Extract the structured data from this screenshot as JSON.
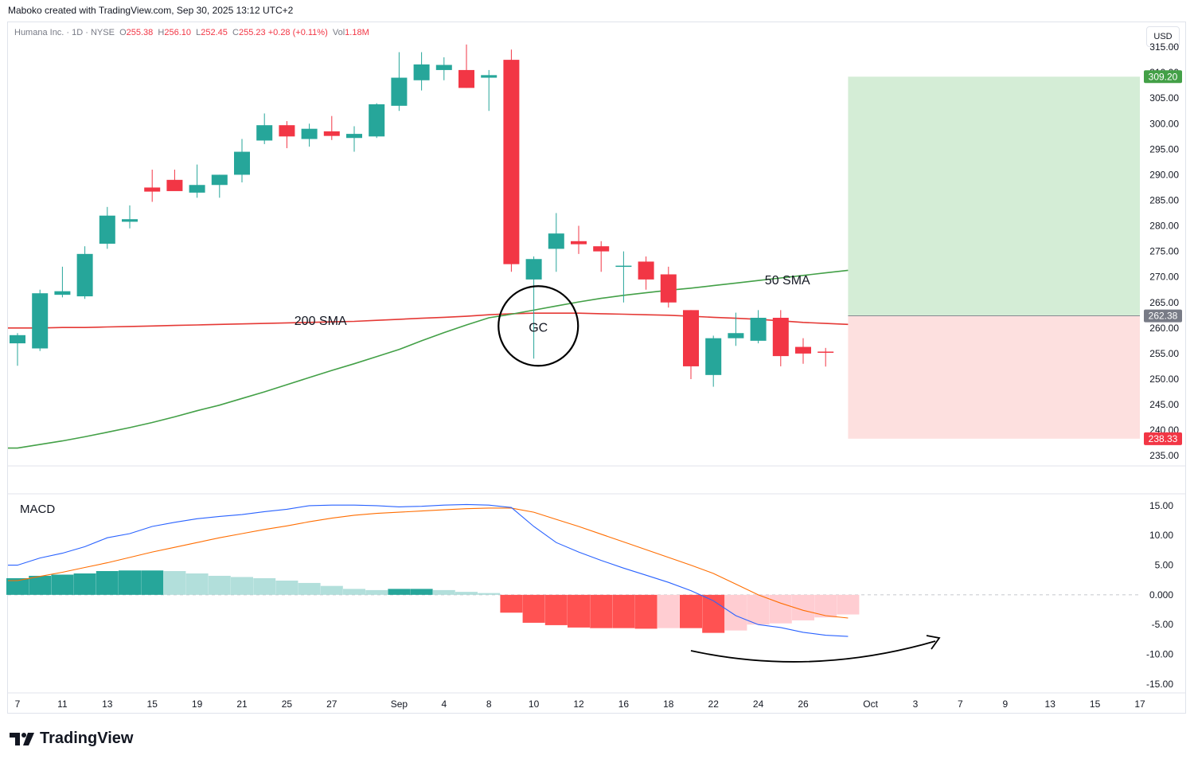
{
  "header": {
    "created_by": "Maboko created with TradingView.com, Sep 30, 2025 13:12 UTC+2",
    "symbol": "Humana Inc. · 1D · NYSE",
    "o_key": "O",
    "o_val": "255.38",
    "h_key": "H",
    "h_val": "256.10",
    "l_key": "L",
    "l_val": "252.45",
    "c_key": "C",
    "c_val": "255.23",
    "change": "+0.28 (+0.11%)",
    "vol_key": "Vol",
    "vol_val": "1.18M"
  },
  "currency_button": "USD",
  "brand": "TradingView",
  "colors": {
    "up": "#26a69a",
    "down": "#f23645",
    "sma50": "#43a047",
    "sma200": "#e53935",
    "macd": "#2962ff",
    "signal": "#ff6d00",
    "target_zone": "#d4edd6",
    "stop_zone": "#fde0df"
  },
  "chart_data": [
    {
      "type": "candlestick",
      "y_ticks": [
        "315.00",
        "310.00",
        "305.00",
        "300.00",
        "295.00",
        "290.00",
        "285.00",
        "280.00",
        "275.00",
        "270.00",
        "265.00",
        "260.00",
        "255.00",
        "250.00",
        "245.00",
        "240.00",
        "235.00"
      ],
      "ylim": [
        233,
        320
      ],
      "x_ticks": [
        {
          "i": 0,
          "label": "7"
        },
        {
          "i": 2,
          "label": "11"
        },
        {
          "i": 4,
          "label": "13"
        },
        {
          "i": 6,
          "label": "15"
        },
        {
          "i": 8,
          "label": "19"
        },
        {
          "i": 10,
          "label": "21"
        },
        {
          "i": 12,
          "label": "25"
        },
        {
          "i": 14,
          "label": "27"
        },
        {
          "i": 17,
          "label": "Sep"
        },
        {
          "i": 19,
          "label": "4"
        },
        {
          "i": 21,
          "label": "8"
        },
        {
          "i": 23,
          "label": "10"
        },
        {
          "i": 25,
          "label": "12"
        },
        {
          "i": 27,
          "label": "16"
        },
        {
          "i": 29,
          "label": "18"
        },
        {
          "i": 31,
          "label": "22"
        },
        {
          "i": 33,
          "label": "24"
        },
        {
          "i": 35,
          "label": "26"
        },
        {
          "i": 38,
          "label": "Oct"
        },
        {
          "i": 40,
          "label": "3"
        },
        {
          "i": 42,
          "label": "7"
        },
        {
          "i": 44,
          "label": "9"
        },
        {
          "i": 46,
          "label": "13"
        },
        {
          "i": 48,
          "label": "15"
        },
        {
          "i": 50,
          "label": "17"
        }
      ],
      "candles": [
        {
          "o": 257.0,
          "h": 259.0,
          "l": 252.6,
          "c": 258.6
        },
        {
          "o": 256.0,
          "h": 267.5,
          "l": 255.5,
          "c": 266.8
        },
        {
          "o": 266.5,
          "h": 272.0,
          "l": 266.0,
          "c": 267.2
        },
        {
          "o": 266.2,
          "h": 276.0,
          "l": 265.7,
          "c": 274.5
        },
        {
          "o": 276.5,
          "h": 283.7,
          "l": 275.5,
          "c": 282.0
        },
        {
          "o": 280.8,
          "h": 284.0,
          "l": 279.5,
          "c": 281.3
        },
        {
          "o": 287.5,
          "h": 291.0,
          "l": 284.7,
          "c": 286.7
        },
        {
          "o": 289.0,
          "h": 291.0,
          "l": 287.0,
          "c": 286.8
        },
        {
          "o": 286.5,
          "h": 292.0,
          "l": 285.5,
          "c": 288.0
        },
        {
          "o": 288.0,
          "h": 290.0,
          "l": 285.5,
          "c": 290.0
        },
        {
          "o": 290.0,
          "h": 297.0,
          "l": 288.5,
          "c": 294.5
        },
        {
          "o": 296.7,
          "h": 302.0,
          "l": 296.0,
          "c": 299.7
        },
        {
          "o": 299.7,
          "h": 300.5,
          "l": 295.2,
          "c": 297.5
        },
        {
          "o": 297.0,
          "h": 300.0,
          "l": 295.5,
          "c": 299.0
        },
        {
          "o": 298.5,
          "h": 301.5,
          "l": 296.8,
          "c": 297.6
        },
        {
          "o": 297.2,
          "h": 299.5,
          "l": 294.5,
          "c": 298.0
        },
        {
          "o": 297.5,
          "h": 304.0,
          "l": 297.2,
          "c": 303.8
        },
        {
          "o": 303.5,
          "h": 314.0,
          "l": 302.5,
          "c": 309.0
        },
        {
          "o": 308.5,
          "h": 314.0,
          "l": 306.5,
          "c": 311.6
        },
        {
          "o": 310.5,
          "h": 313.0,
          "l": 308.5,
          "c": 311.5
        },
        {
          "o": 310.5,
          "h": 315.5,
          "l": 307.0,
          "c": 307.0
        },
        {
          "o": 309.0,
          "h": 310.5,
          "l": 302.5,
          "c": 309.5
        },
        {
          "o": 312.5,
          "h": 314.5,
          "l": 271.0,
          "c": 272.5
        },
        {
          "o": 269.5,
          "h": 274.0,
          "l": 254.0,
          "c": 273.5
        },
        {
          "o": 275.5,
          "h": 282.5,
          "l": 271.0,
          "c": 278.5
        },
        {
          "o": 277.0,
          "h": 280.0,
          "l": 274.5,
          "c": 276.4
        },
        {
          "o": 276.0,
          "h": 277.0,
          "l": 271.0,
          "c": 275.0
        },
        {
          "o": 272.0,
          "h": 275.0,
          "l": 265.0,
          "c": 272.2
        },
        {
          "o": 273.0,
          "h": 274.0,
          "l": 267.5,
          "c": 269.5
        },
        {
          "o": 270.5,
          "h": 272.0,
          "l": 264.0,
          "c": 265.0
        },
        {
          "o": 263.5,
          "h": 263.5,
          "l": 250.0,
          "c": 252.5
        },
        {
          "o": 250.8,
          "h": 258.5,
          "l": 248.5,
          "c": 258.0
        },
        {
          "o": 258.0,
          "h": 263.0,
          "l": 256.5,
          "c": 259.0
        },
        {
          "o": 257.5,
          "h": 263.5,
          "l": 257.0,
          "c": 262.0
        },
        {
          "o": 262.0,
          "h": 263.5,
          "l": 252.5,
          "c": 254.5
        },
        {
          "o": 256.3,
          "h": 258.0,
          "l": 253.0,
          "c": 255.0
        },
        {
          "o": 255.38,
          "h": 256.1,
          "l": 252.45,
          "c": 255.23
        }
      ],
      "sma200": [
        260.0,
        260.0,
        260.1,
        260.1,
        260.2,
        260.3,
        260.4,
        260.5,
        260.6,
        260.7,
        260.8,
        260.9,
        261.0,
        261.1,
        261.2,
        261.3,
        261.5,
        261.7,
        261.9,
        262.1,
        262.3,
        262.6,
        262.8,
        262.9,
        262.9,
        262.9,
        262.8,
        262.7,
        262.6,
        262.5,
        262.3,
        262.1,
        261.9,
        261.7,
        261.4,
        261.1,
        260.9,
        260.7
      ],
      "sma50": [
        236.5,
        237.2,
        237.9,
        238.7,
        239.6,
        240.5,
        241.5,
        242.6,
        243.8,
        244.9,
        246.2,
        247.5,
        248.9,
        250.3,
        251.7,
        253.0,
        254.4,
        255.8,
        257.5,
        259.1,
        260.6,
        262.0,
        262.7,
        263.5,
        264.3,
        265.1,
        265.8,
        266.4,
        266.9,
        267.4,
        267.8,
        268.3,
        268.8,
        269.3,
        269.8,
        270.3,
        270.8,
        271.3
      ],
      "annotations": [
        {
          "text": "200 SMA",
          "i": 13.5,
          "y": 261.5
        },
        {
          "text": "50 SMA",
          "i": 34.3,
          "y": 269.5
        },
        {
          "text": "GC",
          "i": 23.2,
          "y": 260.4
        }
      ],
      "position": {
        "start_i": 37.0,
        "end_i": 50.0,
        "entry": 262.38,
        "target": 309.2,
        "stop": 238.33
      },
      "price_labels": [
        "309.20",
        "262.38",
        "238.33"
      ]
    },
    {
      "type": "macd",
      "title": "MACD",
      "y_ticks": [
        "15.00",
        "10.00",
        "5.00",
        "0.000",
        "-5.00",
        "-10.00",
        "-15.00"
      ],
      "ylim": [
        -16.5,
        17
      ],
      "histogram": [
        2.8,
        3.2,
        3.4,
        3.6,
        4.0,
        4.1,
        4.1,
        4.0,
        3.6,
        3.2,
        3.0,
        2.8,
        2.4,
        2.0,
        1.5,
        1.0,
        0.8,
        1.0,
        1.0,
        0.8,
        0.5,
        0.3,
        -3.0,
        -4.7,
        -5.1,
        -5.5,
        -5.6,
        -5.6,
        -5.7,
        -5.6,
        -5.6,
        -6.4,
        -6.0,
        -5.0,
        -4.8,
        -4.3,
        -3.8,
        -3.3
      ],
      "macd": [
        5.0,
        6.2,
        7.0,
        8.1,
        9.6,
        10.3,
        11.5,
        12.2,
        12.8,
        13.2,
        13.5,
        14.0,
        14.4,
        15.0,
        15.1,
        15.1,
        15.0,
        14.8,
        14.9,
        15.1,
        15.2,
        15.1,
        14.7,
        11.5,
        8.8,
        7.2,
        5.8,
        4.5,
        3.3,
        2.1,
        0.7,
        -1.0,
        -3.5,
        -5.0,
        -5.5,
        -6.3,
        -6.8,
        -7.0
      ],
      "signal": [
        2.4,
        3.1,
        3.8,
        4.6,
        5.4,
        6.3,
        7.2,
        8.0,
        8.8,
        9.6,
        10.3,
        11.0,
        11.6,
        12.3,
        12.9,
        13.4,
        13.7,
        13.9,
        14.1,
        14.3,
        14.5,
        14.6,
        14.6,
        13.9,
        12.7,
        11.5,
        10.2,
        8.9,
        7.6,
        6.3,
        5.0,
        3.6,
        1.8,
        0.0,
        -1.4,
        -2.6,
        -3.5,
        -3.9
      ]
    }
  ]
}
